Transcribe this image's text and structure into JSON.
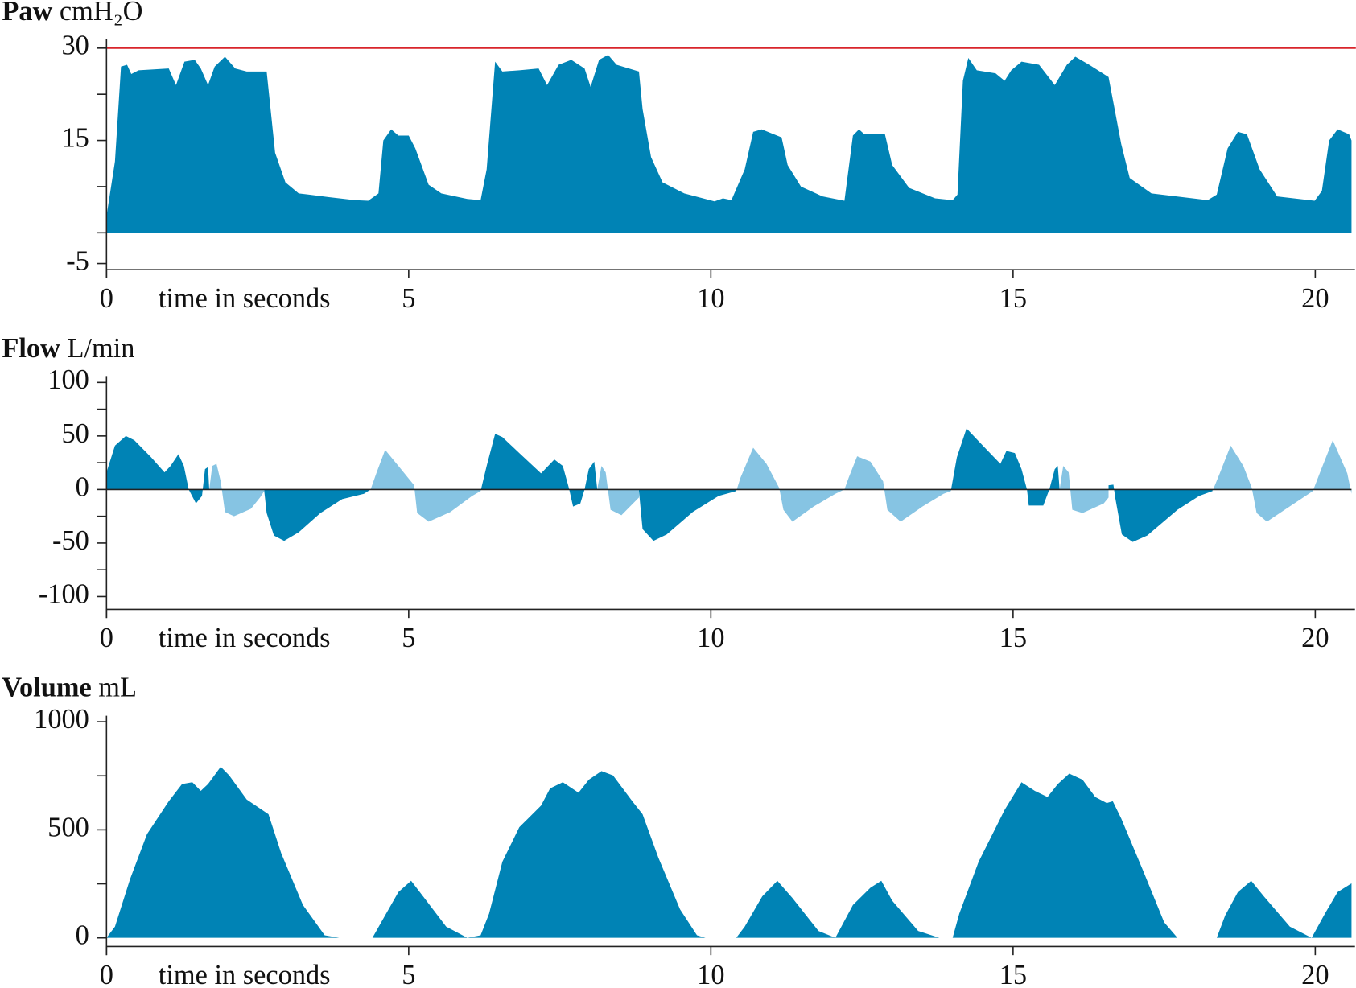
{
  "chart_data": [
    {
      "type": "area",
      "title": "Paw",
      "unit": "cmH₂O",
      "xlabel": "time in seconds",
      "xlim": [
        0,
        20.6
      ],
      "xticks": [
        0,
        5,
        10,
        15,
        20
      ],
      "ylim": [
        -6,
        31.5
      ],
      "yticks": [
        30,
        15,
        -5
      ],
      "yminorticks": [
        22.5,
        7.5,
        0
      ],
      "threshold": {
        "value": 30,
        "color": "#d9252b"
      },
      "series": [
        {
          "color": "#0083b5",
          "x": [
            0,
            0.14,
            0.24,
            0.34,
            0.41,
            0.53,
            1.03,
            1.15,
            1.29,
            1.46,
            1.56,
            1.68,
            1.79,
            1.96,
            2.13,
            2.32,
            2.65,
            2.79,
            2.96,
            3.18,
            3.68,
            4.11,
            4.33,
            4.5,
            4.58,
            4.71,
            4.83,
            5.0,
            5.11,
            5.33,
            5.54,
            5.97,
            6.19,
            6.29,
            6.43,
            6.55,
            6.83,
            7.15,
            7.29,
            7.48,
            7.69,
            7.91,
            8.01,
            8.15,
            8.3,
            8.44,
            8.81,
            8.87,
            9.01,
            9.2,
            9.56,
            10.06,
            10.2,
            10.34,
            10.56,
            10.7,
            10.84,
            11.17,
            11.27,
            11.49,
            11.85,
            12.21,
            12.35,
            12.45,
            12.54,
            12.88,
            13.0,
            13.28,
            13.71,
            14.0,
            14.08,
            14.17,
            14.26,
            14.4,
            14.71,
            14.86,
            14.97,
            15.14,
            15.43,
            15.69,
            15.89,
            16.03,
            16.26,
            16.58,
            16.79,
            16.93,
            17.29,
            18.22,
            18.37,
            18.55,
            18.72,
            18.87,
            19.08,
            19.37,
            19.99,
            20.11,
            20.23,
            20.37,
            20.56,
            20.6
          ],
          "values": [
            2.7,
            11.6,
            27,
            27.3,
            25.8,
            26.4,
            26.7,
            24,
            27.8,
            28.1,
            26.7,
            24,
            27,
            28.6,
            26.7,
            26.2,
            26.2,
            13,
            8.2,
            6.4,
            5.8,
            5.3,
            5.2,
            6.4,
            15,
            16.8,
            15.8,
            15.8,
            13.7,
            7.8,
            6.4,
            5.5,
            5.3,
            10.3,
            27.8,
            26.2,
            26.4,
            26.7,
            24,
            27.3,
            28.1,
            26.7,
            23.7,
            28.1,
            28.9,
            27.3,
            26.2,
            20.1,
            12.3,
            8.2,
            6.4,
            5.1,
            5.6,
            5.3,
            10.3,
            16.4,
            16.8,
            15.5,
            11,
            7.5,
            5.9,
            5.2,
            15.8,
            16.8,
            16,
            16,
            11,
            7.3,
            5.6,
            5.3,
            6.2,
            24.7,
            28.4,
            26.4,
            25.9,
            24.7,
            26.4,
            27.8,
            27.3,
            24,
            27.3,
            28.6,
            27.3,
            25.3,
            14.4,
            8.9,
            6.4,
            5.3,
            6.2,
            13.7,
            16.4,
            16,
            10.3,
            5.9,
            5.2,
            6.8,
            15,
            16.8,
            16,
            15
          ]
        }
      ]
    },
    {
      "type": "area",
      "title": "Flow",
      "unit": "L/min",
      "xlabel": "time in seconds",
      "xlim": [
        0,
        20.6
      ],
      "xticks": [
        0,
        5,
        10,
        15,
        20
      ],
      "ylim": [
        -112,
        106
      ],
      "yticks": [
        100,
        50,
        0,
        -50,
        -100
      ],
      "yminorticks": [
        75,
        25,
        -25,
        -75
      ],
      "zero_line": true,
      "series": [
        {
          "color": "#0083b5",
          "x": [
            0,
            0.14,
            0.32,
            0.46,
            0.74,
            0.96,
            1.06,
            1.19,
            1.28,
            1.36,
            1.48,
            1.58,
            1.63,
            1.68,
            1.7,
            null,
            2.61,
            2.65,
            2.77,
            2.94,
            3.18,
            3.54,
            3.9,
            4.26,
            4.37,
            null,
            6.19,
            6.29,
            6.43,
            6.55,
            6.83,
            7.19,
            7.41,
            7.55,
            7.65,
            7.72,
            7.84,
            7.91,
            7.98,
            8.07,
            8.12,
            null,
            8.81,
            8.87,
            9.05,
            9.27,
            9.7,
            10.13,
            10.42,
            null,
            13.97,
            14.07,
            14.23,
            14.5,
            14.79,
            14.89,
            15.03,
            15.14,
            15.23,
            15.26,
            15.5,
            15.6,
            15.69,
            15.74,
            15.77,
            null,
            16.58,
            16.66,
            16.69,
            16.8,
            16.98,
            17.22,
            17.72,
            18.08,
            18.3
          ],
          "values": [
            16,
            41,
            50,
            46,
            30,
            16,
            22,
            33,
            22,
            0,
            -13,
            -6,
            19,
            21,
            0,
            null,
            -1.5,
            -22,
            -43,
            -48,
            -40,
            -22,
            -9,
            -4,
            0,
            null,
            -1.5,
            22,
            52,
            49,
            34,
            15,
            28,
            22,
            1.5,
            -16,
            -13,
            0,
            19,
            26,
            0,
            null,
            -1.5,
            -37,
            -48,
            -42,
            -21,
            -6,
            -1.5,
            null,
            -1.5,
            30,
            57,
            41,
            24,
            36,
            34,
            19,
            0,
            -15,
            -15,
            0,
            19,
            22,
            0,
            null,
            4,
            4.5,
            -7.5,
            -42,
            -49,
            -43,
            -19,
            -6,
            -1.5
          ]
        },
        {
          "color": "#86c4e3",
          "x": [
            1.7,
            1.75,
            1.82,
            1.89,
            1.96,
            2.11,
            2.39,
            2.54,
            2.61,
            null,
            4.37,
            4.47,
            4.61,
            4.83,
            5.09,
            5.14,
            5.33,
            5.69,
            6.05,
            6.19,
            null,
            8.12,
            8.19,
            8.26,
            8.34,
            8.52,
            8.81,
            null,
            10.42,
            10.49,
            10.7,
            10.92,
            11.13,
            11.2,
            11.35,
            11.7,
            12.06,
            12.21,
            null,
            12.21,
            12.28,
            12.42,
            12.64,
            12.85,
            12.92,
            13.14,
            13.5,
            13.85,
            13.97,
            null,
            15.77,
            15.83,
            15.92,
            15.98,
            16.15,
            16.5,
            16.58,
            null,
            18.3,
            18.42,
            18.6,
            18.81,
            18.95,
            19.03,
            19.2,
            19.6,
            19.96,
            20.1,
            20.29,
            20.53,
            20.6
          ],
          "values": [
            0,
            22,
            24,
            7.5,
            -21,
            -25,
            -18,
            -7.5,
            -1.5,
            null,
            0,
            16,
            37,
            22,
            4,
            -22,
            -30,
            -21,
            -6,
            -1.5,
            null,
            0,
            22,
            16,
            -19,
            -24,
            -7.5,
            null,
            -1.5,
            11,
            39,
            24,
            1.5,
            -19,
            -30,
            -16,
            -4,
            0,
            null,
            0,
            11,
            31,
            26,
            7.5,
            -19,
            -30,
            -16,
            -4,
            -1.5,
            null,
            0,
            22,
            16,
            -19,
            -22,
            -13,
            -7.5,
            null,
            -1.5,
            15,
            41,
            22,
            1.5,
            -22,
            -30,
            -15,
            -1.5,
            19,
            46,
            15,
            -4
          ]
        }
      ]
    },
    {
      "type": "area",
      "title": "Volume",
      "unit": "mL",
      "xlabel": "time in seconds",
      "xlim": [
        0,
        20.6
      ],
      "xticks": [
        0,
        5,
        10,
        15,
        20
      ],
      "ylim": [
        -40,
        1028
      ],
      "yticks": [
        1000,
        500,
        0
      ],
      "yminorticks": [
        750,
        250
      ],
      "series": [
        {
          "color": "#0083b5",
          "x": [
            0,
            0.14,
            0.39,
            0.67,
            1.03,
            1.25,
            1.42,
            1.56,
            1.68,
            1.89,
            2.03,
            2.32,
            2.68,
            2.89,
            3.25,
            3.61,
            3.85,
            4.4,
            4.61,
            4.83,
            5.04,
            5.26,
            5.62,
            5.97,
            6.19,
            6.33,
            6.55,
            6.83,
            7.19,
            7.34,
            7.55,
            7.81,
            7.98,
            8.19,
            8.38,
            8.7,
            8.87,
            9.13,
            9.49,
            9.77,
            9.91,
            10.42,
            10.56,
            10.85,
            11.1,
            11.35,
            11.78,
            12.06,
            12.35,
            12.64,
            12.82,
            13.0,
            13.43,
            13.78,
            14.0,
            14.11,
            14.43,
            14.86,
            15.14,
            15.36,
            15.57,
            15.74,
            15.93,
            16.15,
            16.36,
            16.55,
            16.65,
            16.79,
            17.15,
            17.5,
            17.72,
            18.37,
            18.51,
            18.72,
            18.94,
            19.15,
            19.58,
            19.94,
            20.16,
            20.37,
            20.6
          ],
          "values": [
            0,
            52,
            272,
            480,
            632,
            712,
            720,
            680,
            712,
            792,
            752,
            640,
            572,
            392,
            152,
            12,
            0,
            0,
            104,
            212,
            264,
            184,
            52,
            0,
            12,
            112,
            352,
            512,
            612,
            692,
            720,
            672,
            732,
            772,
            752,
            632,
            572,
            372,
            132,
            12,
            0,
            0,
            52,
            192,
            264,
            184,
            32,
            0,
            152,
            232,
            264,
            172,
            32,
            0,
            0,
            112,
            352,
            592,
            720,
            680,
            652,
            712,
            760,
            732,
            652,
            624,
            632,
            552,
            312,
            72,
            0,
            0,
            104,
            212,
            264,
            192,
            52,
            0,
            112,
            212,
            252
          ]
        }
      ]
    }
  ]
}
